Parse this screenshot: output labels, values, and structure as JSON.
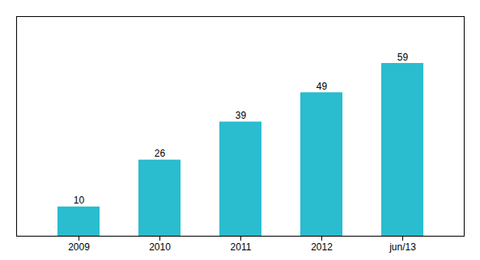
{
  "chart_data": {
    "type": "bar",
    "categories": [
      "2009",
      "2010",
      "2011",
      "2012",
      "jun/13"
    ],
    "values": [
      10,
      26,
      39,
      49,
      59
    ],
    "color": "#2abccf",
    "ylim": [
      0,
      75
    ],
    "data_labels": true,
    "tick_labels": "x"
  }
}
